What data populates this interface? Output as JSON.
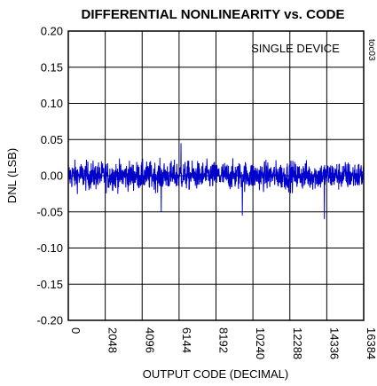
{
  "chart_data": {
    "type": "line",
    "title": "DIFFERENTIAL NONLINEARITY vs. CODE",
    "xlabel": "OUTPUT CODE (DECIMAL)",
    "ylabel": "DNL (LSB)",
    "annotation": "SINGLE DEVICE",
    "figure_tag": "toc03",
    "xlim": [
      0,
      16384
    ],
    "ylim": [
      -0.2,
      0.2
    ],
    "x_ticks": [
      0,
      2048,
      4096,
      6144,
      8192,
      10240,
      12288,
      14336,
      16384
    ],
    "x_tick_labels": [
      "0",
      "2048",
      "4096",
      "6144",
      "8192",
      "10240",
      "12288",
      "14336",
      "16384"
    ],
    "y_ticks": [
      0.2,
      0.15,
      0.1,
      0.05,
      0.0,
      -0.05,
      -0.1,
      -0.15,
      -0.2
    ],
    "y_tick_labels": [
      "0.20",
      "0.15",
      "0.10",
      "0.05",
      "0.00",
      "-0.05",
      "-0.10",
      "-0.15",
      "-0.20"
    ],
    "grid": true,
    "series": [
      {
        "color": "#0000cc",
        "style": "dense noise band",
        "x_start": 0,
        "x_end": 16384,
        "typical_range": [
          -0.035,
          0.035
        ],
        "max": 0.045,
        "min": -0.06,
        "notable_spikes": [
          {
            "x": 6250,
            "y": 0.045
          },
          {
            "x": 9650,
            "y": -0.055
          },
          {
            "x": 14200,
            "y": -0.06
          },
          {
            "x": 5150,
            "y": -0.05
          }
        ]
      }
    ]
  }
}
